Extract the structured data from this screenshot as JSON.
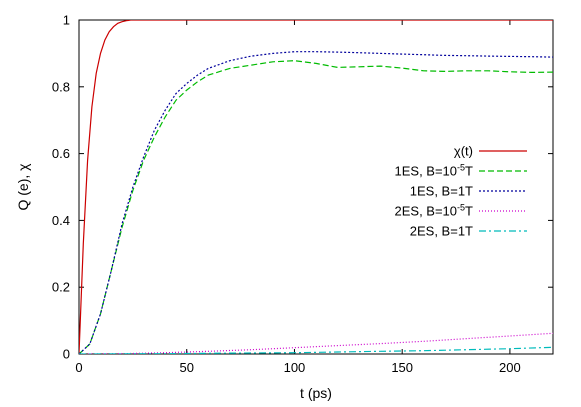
{
  "chart_data": {
    "type": "line",
    "xlabel": "t (ps)",
    "ylabel": "Q (e), χ",
    "xlim": [
      0,
      220
    ],
    "ylim": [
      0,
      1
    ],
    "xticks": [
      "0",
      "50",
      "100",
      "150",
      "200"
    ],
    "yticks": [
      "0",
      "0.2",
      "0.4",
      "0.6",
      "0.8",
      "1"
    ],
    "grid": false,
    "legend_placement": "right",
    "series": [
      {
        "name": "χ(t)",
        "color": "#cc0000",
        "dash": "solid",
        "x": [
          0,
          2,
          4,
          6,
          8,
          10,
          12,
          14,
          16,
          18,
          20,
          22,
          24,
          30,
          40,
          60,
          100,
          150,
          220
        ],
        "y": [
          0,
          0.33,
          0.58,
          0.74,
          0.84,
          0.9,
          0.94,
          0.965,
          0.98,
          0.99,
          0.995,
          0.998,
          1,
          1,
          1,
          1,
          1,
          1,
          1
        ]
      },
      {
        "name": "1ES, B=10-5T",
        "color": "#00bb00",
        "dash": "dashed",
        "x": [
          0,
          5,
          10,
          15,
          20,
          25,
          30,
          35,
          40,
          45,
          50,
          55,
          60,
          70,
          80,
          90,
          100,
          110,
          120,
          130,
          140,
          150,
          160,
          170,
          180,
          190,
          200,
          210,
          220
        ],
        "y": [
          0,
          0.03,
          0.12,
          0.25,
          0.38,
          0.49,
          0.58,
          0.65,
          0.71,
          0.76,
          0.79,
          0.815,
          0.835,
          0.855,
          0.865,
          0.875,
          0.878,
          0.87,
          0.858,
          0.86,
          0.862,
          0.856,
          0.848,
          0.846,
          0.848,
          0.848,
          0.845,
          0.843,
          0.844
        ]
      },
      {
        "name": "1ES, B=1T",
        "color": "#00009c",
        "dash": "dotted",
        "x": [
          0,
          5,
          10,
          15,
          20,
          25,
          30,
          35,
          40,
          45,
          50,
          55,
          60,
          70,
          80,
          90,
          100,
          110,
          120,
          130,
          140,
          150,
          160,
          170,
          180,
          190,
          200,
          210,
          220
        ],
        "y": [
          0,
          0.03,
          0.12,
          0.25,
          0.39,
          0.5,
          0.59,
          0.67,
          0.73,
          0.78,
          0.81,
          0.835,
          0.855,
          0.878,
          0.892,
          0.9,
          0.905,
          0.905,
          0.904,
          0.902,
          0.9,
          0.898,
          0.896,
          0.894,
          0.893,
          0.892,
          0.891,
          0.89,
          0.889
        ]
      },
      {
        "name": "2ES, B=10-5T",
        "color": "#cc00cc",
        "dash": "fine-dotted",
        "x": [
          0,
          20,
          40,
          60,
          80,
          100,
          120,
          140,
          160,
          180,
          200,
          220
        ],
        "y": [
          0,
          0.001,
          0.004,
          0.008,
          0.013,
          0.019,
          0.025,
          0.031,
          0.038,
          0.046,
          0.054,
          0.062
        ]
      },
      {
        "name": "2ES, B=1T",
        "color": "#00bbbb",
        "dash": "dash-dot",
        "x": [
          0,
          20,
          40,
          60,
          80,
          100,
          120,
          140,
          160,
          180,
          200,
          220
        ],
        "y": [
          0,
          0.0005,
          0.001,
          0.002,
          0.003,
          0.004,
          0.006,
          0.008,
          0.01,
          0.013,
          0.016,
          0.02
        ]
      }
    ]
  }
}
